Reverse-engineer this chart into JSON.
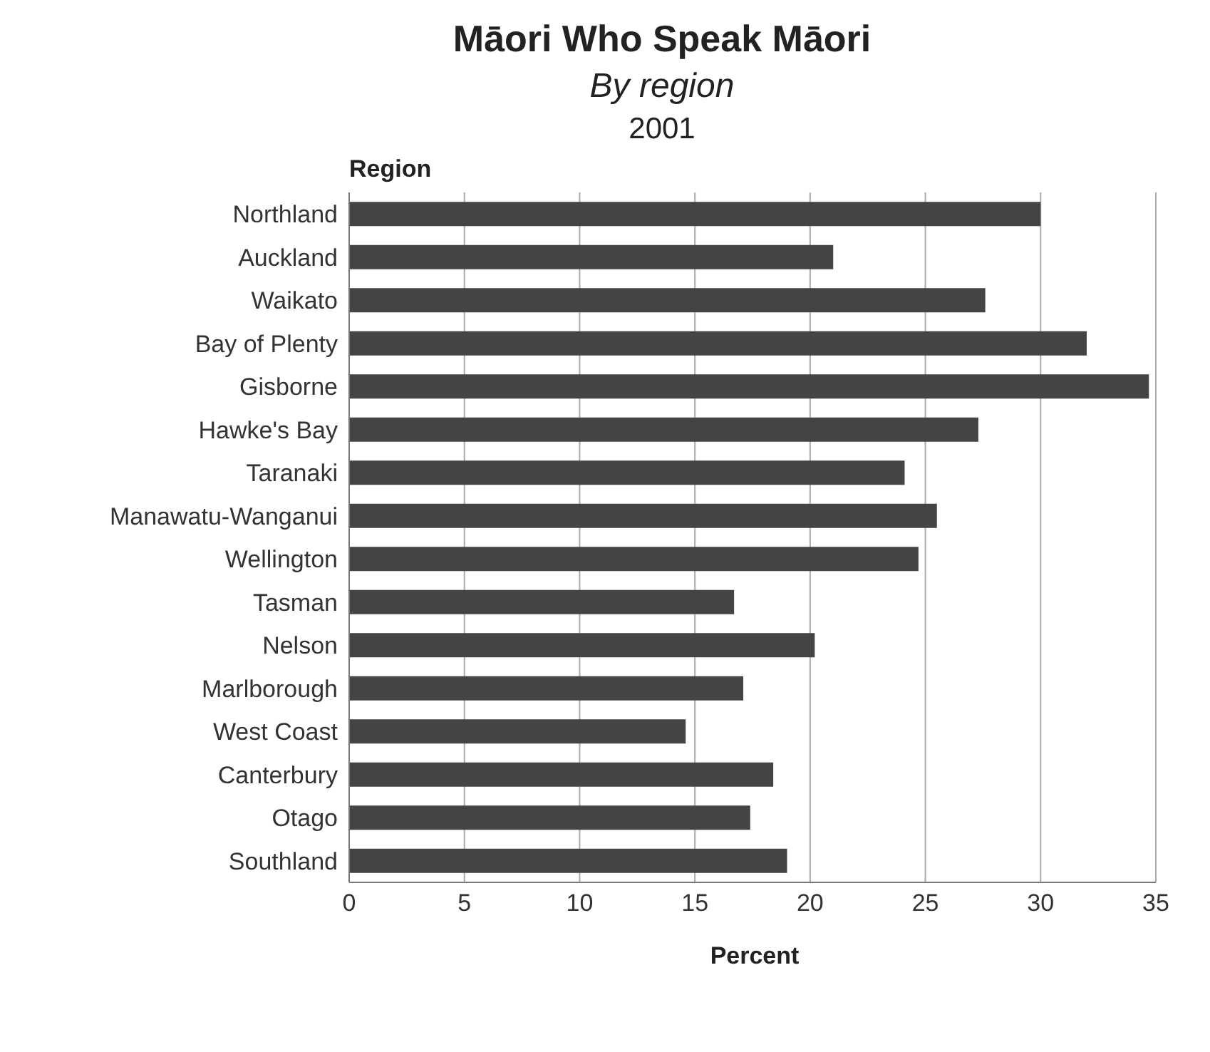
{
  "chart_data": {
    "type": "bar",
    "orientation": "horizontal",
    "title": "Māori Who Speak Māori",
    "subtitle": "By region",
    "annotations": [
      "2001"
    ],
    "ylabel": "Region",
    "xlabel": "Percent",
    "categories": [
      "Northland",
      "Auckland",
      "Waikato",
      "Bay of Plenty",
      "Gisborne",
      "Hawke's Bay",
      "Taranaki",
      "Manawatu-Wanganui",
      "Wellington",
      "Tasman",
      "Nelson",
      "Marlborough",
      "West Coast",
      "Canterbury",
      "Otago",
      "Southland"
    ],
    "values": [
      30.0,
      21.0,
      27.6,
      32.0,
      34.7,
      27.3,
      24.1,
      25.5,
      24.7,
      16.7,
      20.2,
      17.1,
      14.6,
      18.4,
      17.4,
      19.0
    ],
    "color": "#444446",
    "xlim": [
      0,
      35
    ],
    "xticks": [
      0,
      5,
      10,
      15,
      20,
      25,
      30,
      35
    ],
    "grid": "x",
    "legend": false
  }
}
